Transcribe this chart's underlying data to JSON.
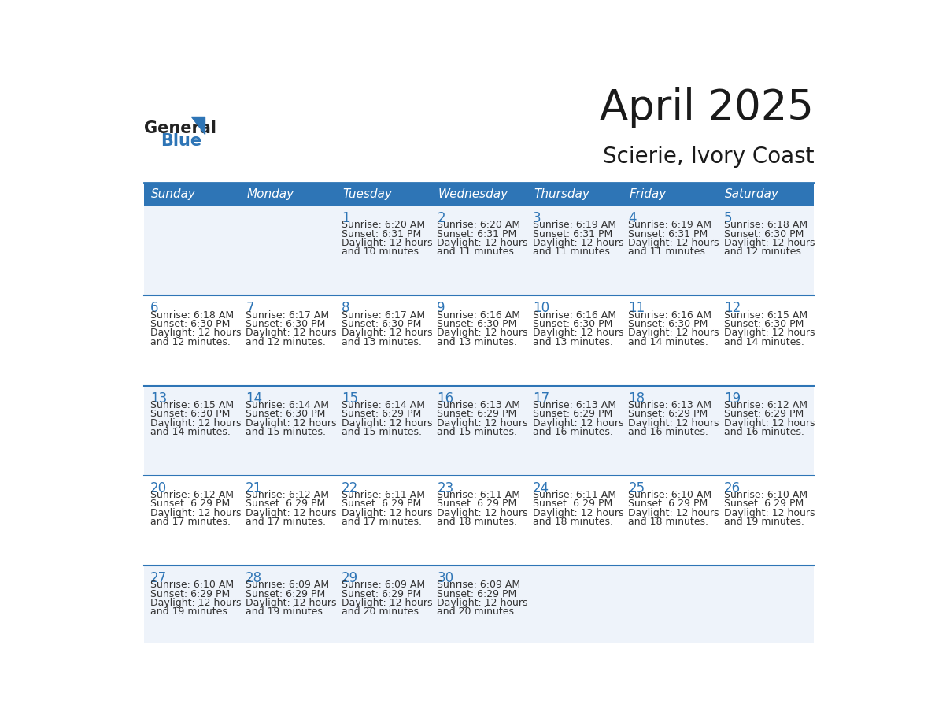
{
  "title": "April 2025",
  "subtitle": "Scierie, Ivory Coast",
  "header_bg_color": "#2E75B6",
  "header_text_color": "#FFFFFF",
  "cell_bg_even": "#EEF3FA",
  "cell_bg_odd": "#FFFFFF",
  "cell_text_color": "#333333",
  "border_color": "#2E75B6",
  "day_number_color": "#2E75B6",
  "days_of_week": [
    "Sunday",
    "Monday",
    "Tuesday",
    "Wednesday",
    "Thursday",
    "Friday",
    "Saturday"
  ],
  "logo_general_color": "#222222",
  "logo_blue_color": "#2E75B6",
  "calendar_data": [
    [
      {
        "day": "",
        "sunrise": "",
        "sunset": "",
        "daylight": ""
      },
      {
        "day": "",
        "sunrise": "",
        "sunset": "",
        "daylight": ""
      },
      {
        "day": "1",
        "sunrise": "6:20 AM",
        "sunset": "6:31 PM",
        "daylight": "and 10 minutes."
      },
      {
        "day": "2",
        "sunrise": "6:20 AM",
        "sunset": "6:31 PM",
        "daylight": "and 11 minutes."
      },
      {
        "day": "3",
        "sunrise": "6:19 AM",
        "sunset": "6:31 PM",
        "daylight": "and 11 minutes."
      },
      {
        "day": "4",
        "sunrise": "6:19 AM",
        "sunset": "6:31 PM",
        "daylight": "and 11 minutes."
      },
      {
        "day": "5",
        "sunrise": "6:18 AM",
        "sunset": "6:30 PM",
        "daylight": "and 12 minutes."
      }
    ],
    [
      {
        "day": "6",
        "sunrise": "6:18 AM",
        "sunset": "6:30 PM",
        "daylight": "and 12 minutes."
      },
      {
        "day": "7",
        "sunrise": "6:17 AM",
        "sunset": "6:30 PM",
        "daylight": "and 12 minutes."
      },
      {
        "day": "8",
        "sunrise": "6:17 AM",
        "sunset": "6:30 PM",
        "daylight": "and 13 minutes."
      },
      {
        "day": "9",
        "sunrise": "6:16 AM",
        "sunset": "6:30 PM",
        "daylight": "and 13 minutes."
      },
      {
        "day": "10",
        "sunrise": "6:16 AM",
        "sunset": "6:30 PM",
        "daylight": "and 13 minutes."
      },
      {
        "day": "11",
        "sunrise": "6:16 AM",
        "sunset": "6:30 PM",
        "daylight": "and 14 minutes."
      },
      {
        "day": "12",
        "sunrise": "6:15 AM",
        "sunset": "6:30 PM",
        "daylight": "and 14 minutes."
      }
    ],
    [
      {
        "day": "13",
        "sunrise": "6:15 AM",
        "sunset": "6:30 PM",
        "daylight": "and 14 minutes."
      },
      {
        "day": "14",
        "sunrise": "6:14 AM",
        "sunset": "6:30 PM",
        "daylight": "and 15 minutes."
      },
      {
        "day": "15",
        "sunrise": "6:14 AM",
        "sunset": "6:29 PM",
        "daylight": "and 15 minutes."
      },
      {
        "day": "16",
        "sunrise": "6:13 AM",
        "sunset": "6:29 PM",
        "daylight": "and 15 minutes."
      },
      {
        "day": "17",
        "sunrise": "6:13 AM",
        "sunset": "6:29 PM",
        "daylight": "and 16 minutes."
      },
      {
        "day": "18",
        "sunrise": "6:13 AM",
        "sunset": "6:29 PM",
        "daylight": "and 16 minutes."
      },
      {
        "day": "19",
        "sunrise": "6:12 AM",
        "sunset": "6:29 PM",
        "daylight": "and 16 minutes."
      }
    ],
    [
      {
        "day": "20",
        "sunrise": "6:12 AM",
        "sunset": "6:29 PM",
        "daylight": "and 17 minutes."
      },
      {
        "day": "21",
        "sunrise": "6:12 AM",
        "sunset": "6:29 PM",
        "daylight": "and 17 minutes."
      },
      {
        "day": "22",
        "sunrise": "6:11 AM",
        "sunset": "6:29 PM",
        "daylight": "and 17 minutes."
      },
      {
        "day": "23",
        "sunrise": "6:11 AM",
        "sunset": "6:29 PM",
        "daylight": "and 18 minutes."
      },
      {
        "day": "24",
        "sunrise": "6:11 AM",
        "sunset": "6:29 PM",
        "daylight": "and 18 minutes."
      },
      {
        "day": "25",
        "sunrise": "6:10 AM",
        "sunset": "6:29 PM",
        "daylight": "and 18 minutes."
      },
      {
        "day": "26",
        "sunrise": "6:10 AM",
        "sunset": "6:29 PM",
        "daylight": "and 19 minutes."
      }
    ],
    [
      {
        "day": "27",
        "sunrise": "6:10 AM",
        "sunset": "6:29 PM",
        "daylight": "and 19 minutes."
      },
      {
        "day": "28",
        "sunrise": "6:09 AM",
        "sunset": "6:29 PM",
        "daylight": "and 19 minutes."
      },
      {
        "day": "29",
        "sunrise": "6:09 AM",
        "sunset": "6:29 PM",
        "daylight": "and 20 minutes."
      },
      {
        "day": "30",
        "sunrise": "6:09 AM",
        "sunset": "6:29 PM",
        "daylight": "and 20 minutes."
      },
      {
        "day": "",
        "sunrise": "",
        "sunset": "",
        "daylight": ""
      },
      {
        "day": "",
        "sunrise": "",
        "sunset": "",
        "daylight": ""
      },
      {
        "day": "",
        "sunrise": "",
        "sunset": "",
        "daylight": ""
      }
    ]
  ]
}
